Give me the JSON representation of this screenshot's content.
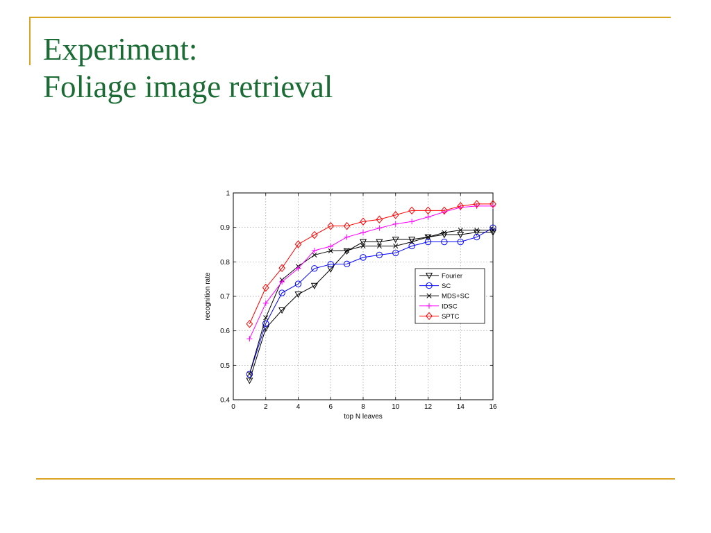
{
  "slide": {
    "title_line1": "Experiment:",
    "title_line2": "Foliage image retrieval",
    "accent_color": "#d9a520",
    "title_color": "#1a6b34"
  },
  "chart_data": {
    "type": "line",
    "xlabel": "top N leaves",
    "ylabel": "recognition rate",
    "xlim": [
      0,
      16
    ],
    "ylim": [
      0.4,
      1
    ],
    "xticks": [
      0,
      2,
      4,
      6,
      8,
      10,
      12,
      14,
      16
    ],
    "yticks": [
      0.4,
      0.5,
      0.6,
      0.7,
      0.8,
      0.9,
      1
    ],
    "grid": true,
    "legend_position": "right",
    "x": [
      1,
      2,
      3,
      4,
      5,
      6,
      7,
      8,
      9,
      10,
      11,
      12,
      13,
      14,
      15,
      16
    ],
    "series": [
      {
        "name": "Fourier",
        "color": "#000000",
        "marker": "triangle-down",
        "values": [
          0.456,
          0.607,
          0.66,
          0.706,
          0.731,
          0.779,
          0.831,
          0.858,
          0.858,
          0.865,
          0.865,
          0.872,
          0.879,
          0.879,
          0.886,
          0.886
        ]
      },
      {
        "name": "SC",
        "color": "#0000ff",
        "marker": "circle",
        "values": [
          0.474,
          0.621,
          0.71,
          0.736,
          0.781,
          0.793,
          0.794,
          0.813,
          0.82,
          0.826,
          0.846,
          0.858,
          0.858,
          0.858,
          0.872,
          0.899
        ]
      },
      {
        "name": "MDS+SC",
        "color": "#000000",
        "marker": "x",
        "values": [
          0.475,
          0.638,
          0.748,
          0.787,
          0.82,
          0.832,
          0.833,
          0.846,
          0.846,
          0.846,
          0.858,
          0.872,
          0.885,
          0.892,
          0.892,
          0.892
        ]
      },
      {
        "name": "IDSC",
        "color": "#ff00ff",
        "marker": "plus",
        "values": [
          0.577,
          0.68,
          0.742,
          0.781,
          0.833,
          0.845,
          0.872,
          0.885,
          0.898,
          0.91,
          0.917,
          0.93,
          0.945,
          0.958,
          0.962,
          0.962
        ]
      },
      {
        "name": "SPTC",
        "color": "#ff0000",
        "marker": "diamond",
        "values": [
          0.62,
          0.725,
          0.782,
          0.851,
          0.878,
          0.904,
          0.904,
          0.917,
          0.923,
          0.936,
          0.949,
          0.949,
          0.949,
          0.962,
          0.968,
          0.968
        ]
      }
    ]
  }
}
